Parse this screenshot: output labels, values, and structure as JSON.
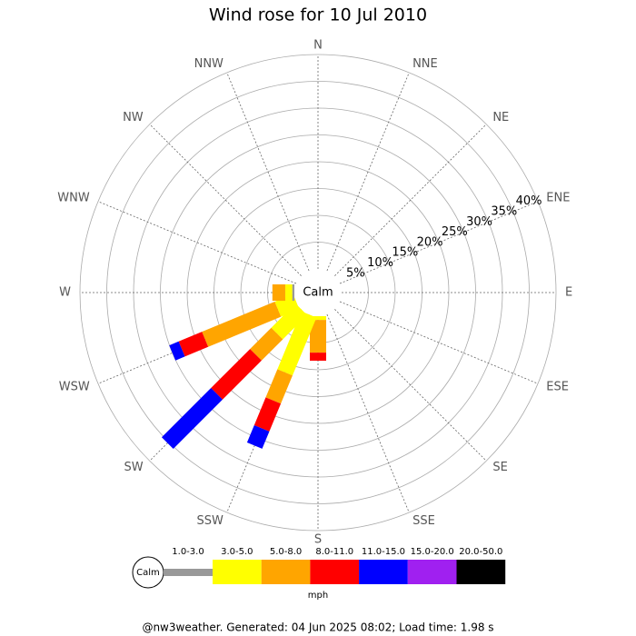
{
  "chart_data": {
    "type": "windrose",
    "title": "Wind rose for 10 Jul 2010",
    "categories": [
      "N",
      "NNE",
      "NE",
      "ENE",
      "E",
      "ESE",
      "SE",
      "SSE",
      "S",
      "SSW",
      "SW",
      "WSW",
      "W",
      "WNW",
      "NW",
      "NNW"
    ],
    "calm_label": "Calm",
    "rlim": [
      0,
      40
    ],
    "rticks": [
      {
        "value": 5,
        "label": "5%"
      },
      {
        "value": 10,
        "label": "10%"
      },
      {
        "value": 15,
        "label": "15%"
      },
      {
        "value": 20,
        "label": "20%"
      },
      {
        "value": 25,
        "label": "25%"
      },
      {
        "value": 30,
        "label": "30%"
      },
      {
        "value": 35,
        "label": "35%"
      },
      {
        "value": 40,
        "label": "40%"
      }
    ],
    "series": [
      {
        "name": "1.0-3.0",
        "color": "#999999",
        "values": [
          0,
          0,
          0,
          0,
          0,
          0,
          0,
          0,
          0,
          0,
          0,
          0,
          0.4,
          0,
          0,
          0
        ]
      },
      {
        "name": "3.0-5.0",
        "color": "#ffff00",
        "values": [
          0,
          0,
          0,
          0,
          0,
          0,
          0,
          0,
          0.7,
          11.7,
          6.4,
          3.7,
          1.3,
          0,
          0,
          0
        ]
      },
      {
        "name": "5.0-8.0",
        "color": "#ffa500",
        "values": [
          0,
          0,
          0,
          0,
          0,
          0,
          0,
          0,
          6.1,
          5.7,
          5.6,
          14.7,
          2.4,
          0,
          0,
          0
        ]
      },
      {
        "name": "8.0-11.0",
        "color": "#ff0000",
        "values": [
          0,
          0,
          0,
          0,
          0,
          0,
          0,
          0,
          1.5,
          5.6,
          10.3,
          4.7,
          0,
          0,
          0,
          0
        ]
      },
      {
        "name": "11.0-15.0",
        "color": "#0000ff",
        "values": [
          0,
          0,
          0,
          0,
          0,
          0,
          0,
          0,
          0,
          3.5,
          13,
          1.9,
          0,
          0,
          0,
          0
        ]
      },
      {
        "name": "15.0-20.0",
        "color": "#a020f0",
        "values": [
          0,
          0,
          0,
          0,
          0,
          0,
          0,
          0,
          0,
          0,
          0,
          0,
          0,
          0,
          0,
          0
        ]
      },
      {
        "name": "20.0-50.0",
        "color": "#000000",
        "values": [
          0,
          0,
          0,
          0,
          0,
          0,
          0,
          0,
          0,
          0,
          0,
          0,
          0,
          0,
          0,
          0
        ]
      }
    ],
    "units": "mph",
    "footer": "@nw3weather. Generated: 04 Jun 2025 08:02; Load time: 1.98 s"
  }
}
